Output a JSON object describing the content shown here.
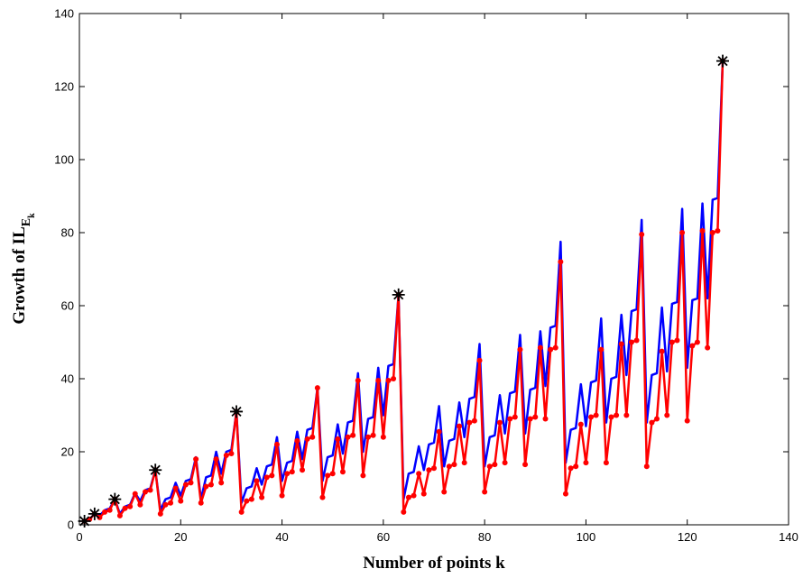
{
  "chart_data": {
    "type": "line",
    "xlabel": "Number of points k",
    "ylabel": {
      "main": "Growth of IL",
      "sub1": "E",
      "sub2": "k"
    },
    "xlim": [
      0,
      140
    ],
    "ylim": [
      0,
      140
    ],
    "xticks": [
      0,
      20,
      40,
      60,
      80,
      100,
      120,
      140
    ],
    "yticks": [
      0,
      20,
      40,
      60,
      80,
      100,
      120,
      140
    ],
    "grid": false,
    "colors": {
      "blue": "#0000ff",
      "red": "#ff0000",
      "star": "#000000"
    },
    "series": [
      {
        "color": "#0000ff",
        "marker": "none",
        "x": [
          1,
          2,
          3,
          4,
          5,
          6,
          7,
          8,
          9,
          10,
          11,
          12,
          13,
          14,
          15,
          16,
          17,
          18,
          19,
          20,
          21,
          22,
          23,
          24,
          25,
          26,
          27,
          28,
          29,
          30,
          31,
          32,
          33,
          34,
          35,
          36,
          37,
          38,
          39,
          40,
          41,
          42,
          43,
          44,
          45,
          46,
          47,
          48,
          49,
          50,
          51,
          52,
          53,
          54,
          55,
          56,
          57,
          58,
          59,
          60,
          61,
          62,
          63,
          64,
          65,
          66,
          67,
          68,
          69,
          70,
          71,
          72,
          73,
          74,
          75,
          76,
          77,
          78,
          79,
          80,
          81,
          82,
          83,
          84,
          85,
          86,
          87,
          88,
          89,
          90,
          91,
          92,
          93,
          94,
          95,
          96,
          97,
          98,
          99,
          100,
          101,
          102,
          103,
          104,
          105,
          106,
          107,
          108,
          109,
          110,
          111,
          112,
          113,
          114,
          115,
          116,
          117,
          118,
          119,
          120,
          121,
          122,
          123,
          124,
          125,
          126,
          127
        ],
        "y": [
          1,
          1.5,
          3,
          2.5,
          4,
          4.5,
          7,
          3,
          5,
          5.5,
          8.7,
          6.5,
          9.5,
          10,
          15,
          4,
          7,
          7.5,
          11.5,
          8,
          12,
          12.5,
          18.5,
          7,
          13,
          13.5,
          20,
          14,
          20,
          20.5,
          31,
          6,
          10,
          10.5,
          15.5,
          11,
          16,
          16.5,
          24,
          12,
          17,
          17.5,
          25.5,
          18,
          26,
          26.5,
          37.5,
          12,
          18.5,
          19,
          27.5,
          19.5,
          28,
          28.5,
          41.5,
          20,
          29,
          29.5,
          43,
          30,
          43.5,
          44,
          63,
          7,
          14,
          14.5,
          21.5,
          15,
          22,
          22.5,
          32.5,
          16,
          23,
          23.5,
          33.5,
          24,
          34.5,
          35,
          49.5,
          16,
          24,
          24.5,
          35.5,
          25,
          36,
          36.5,
          52,
          25,
          37,
          37.5,
          53,
          38,
          54,
          54.5,
          77.5,
          17,
          26,
          26.5,
          38.5,
          27,
          39,
          39.5,
          56.5,
          28,
          40,
          40.5,
          57.5,
          41,
          58.5,
          59,
          83.5,
          28,
          41,
          41.5,
          59.5,
          42,
          60.5,
          61,
          86.5,
          43,
          61.5,
          62,
          88,
          62,
          89,
          89.5,
          127
        ]
      },
      {
        "color": "#ff0000",
        "marker": "dot",
        "x": [
          1,
          2,
          3,
          4,
          5,
          6,
          7,
          8,
          9,
          10,
          11,
          12,
          13,
          14,
          15,
          16,
          17,
          18,
          19,
          20,
          21,
          22,
          23,
          24,
          25,
          26,
          27,
          28,
          29,
          30,
          31,
          32,
          33,
          34,
          35,
          36,
          37,
          38,
          39,
          40,
          41,
          42,
          43,
          44,
          45,
          46,
          47,
          48,
          49,
          50,
          51,
          52,
          53,
          54,
          55,
          56,
          57,
          58,
          59,
          60,
          61,
          62,
          63,
          64,
          65,
          66,
          67,
          68,
          69,
          70,
          71,
          72,
          73,
          74,
          75,
          76,
          77,
          78,
          79,
          80,
          81,
          82,
          83,
          84,
          85,
          86,
          87,
          88,
          89,
          90,
          91,
          92,
          93,
          94,
          95,
          96,
          97,
          98,
          99,
          100,
          101,
          102,
          103,
          104,
          105,
          106,
          107,
          108,
          109,
          110,
          111,
          112,
          113,
          114,
          115,
          116,
          117,
          118,
          119,
          120,
          121,
          122,
          123,
          124,
          125,
          126,
          127
        ],
        "y": [
          1,
          1.5,
          3,
          2,
          3.5,
          4,
          7,
          2.5,
          4.5,
          5,
          8.5,
          5.5,
          9,
          9.5,
          15,
          3,
          5.5,
          6,
          10,
          6.5,
          11,
          11.5,
          18,
          6,
          10.5,
          11,
          18,
          11.5,
          19,
          19.5,
          31,
          3.5,
          6.5,
          7,
          12,
          7.5,
          13,
          13.5,
          22,
          8,
          14,
          14.5,
          23,
          15,
          23.5,
          24,
          37.5,
          7.5,
          13.5,
          14,
          23.5,
          14.5,
          24,
          24.5,
          39.5,
          13.5,
          24,
          24.5,
          39.5,
          24,
          39.5,
          40,
          63,
          3.5,
          7.5,
          8,
          14,
          8.5,
          15,
          15.5,
          25.5,
          9,
          16,
          16.5,
          27,
          17,
          28,
          28.5,
          45,
          9,
          16,
          16.5,
          28,
          17,
          29,
          29.5,
          48,
          16.5,
          29,
          29.5,
          48.5,
          29,
          48,
          48.5,
          72,
          8.5,
          15.5,
          16,
          27.5,
          17,
          29.5,
          30,
          48,
          17,
          29.5,
          30,
          49.5,
          30,
          50,
          50.5,
          79.5,
          16,
          28,
          29,
          47.5,
          30,
          50,
          50.5,
          80,
          28.5,
          49,
          50,
          80.5,
          48.5,
          80,
          80.5,
          127
        ]
      },
      {
        "color": "#000000",
        "marker": "asterisk",
        "x": [
          1,
          3,
          7,
          15,
          31,
          63,
          127
        ],
        "y": [
          1,
          3,
          7,
          15,
          31,
          63,
          127
        ]
      }
    ]
  }
}
